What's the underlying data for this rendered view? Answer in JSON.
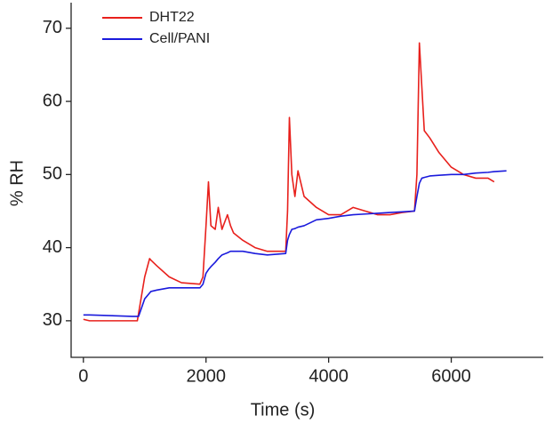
{
  "chart_data": {
    "type": "line",
    "x_label": "Time (s)",
    "y_label": "% RH",
    "x": [
      0,
      100,
      800,
      880,
      900,
      1000,
      1080,
      1100,
      1200,
      1400,
      1600,
      1900,
      1950,
      2000,
      2040,
      2080,
      2150,
      2200,
      2260,
      2350,
      2400,
      2450,
      2600,
      2800,
      3000,
      3300,
      3330,
      3360,
      3400,
      3450,
      3500,
      3600,
      3800,
      4000,
      4200,
      4400,
      4600,
      4800,
      5000,
      5200,
      5400,
      5440,
      5480,
      5520,
      5560,
      5650,
      5800,
      6000,
      6200,
      6400,
      6600,
      6700,
      6900
    ],
    "series": [
      {
        "name": "DHT22",
        "color": "#e8201c",
        "values": [
          30.2,
          30,
          30,
          30,
          31,
          36,
          38.5,
          38.3,
          37.5,
          36,
          35.2,
          35,
          36,
          43,
          49,
          43,
          42.5,
          45.5,
          42.5,
          44.5,
          43,
          42,
          41,
          40,
          39.5,
          39.5,
          45,
          57.8,
          50,
          47,
          50.5,
          47,
          45.5,
          44.5,
          44.5,
          45.5,
          45,
          44.5,
          44.5,
          44.8,
          45,
          50,
          68,
          62,
          56,
          55,
          53,
          51,
          50,
          49.5,
          49.5,
          49,
          null
        ]
      },
      {
        "name": "Cell/PANI",
        "color": "#1a1adc",
        "values": [
          30.8,
          30.8,
          30.6,
          30.6,
          30.6,
          33,
          33.8,
          34,
          34.2,
          34.5,
          34.5,
          34.5,
          35,
          36.5,
          37,
          37.4,
          38,
          38.5,
          39,
          39.3,
          39.5,
          39.5,
          39.5,
          39.2,
          39,
          39.2,
          41,
          41.8,
          42.5,
          42.6,
          42.8,
          43,
          43.8,
          44,
          44.3,
          44.5,
          44.6,
          44.7,
          44.8,
          44.9,
          45,
          47,
          48.8,
          49.5,
          49.6,
          49.8,
          49.9,
          50,
          50,
          50.2,
          50.3,
          50.4,
          50.5
        ]
      }
    ],
    "xlim": [
      -200,
      7500
    ],
    "ylim": [
      25,
      73.5
    ],
    "xticks": [
      0,
      2000,
      4000,
      6000
    ],
    "yticks": [
      30,
      40,
      50,
      60,
      70
    ],
    "legend": "upper left",
    "grid": false
  }
}
